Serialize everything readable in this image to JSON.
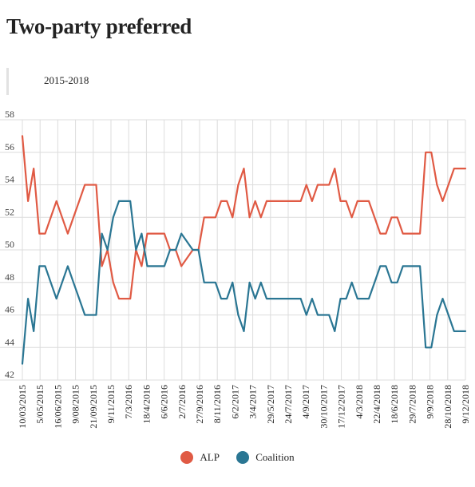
{
  "page": {
    "title": "Two-party preferred",
    "range_label": "2015-2018"
  },
  "colors": {
    "alp": "#e05a44",
    "coalition": "#2a7693",
    "grid": "#dcdcdc"
  },
  "chart_data": {
    "type": "line",
    "title": "Two-party preferred",
    "subtitle": "2015-2018",
    "xlabel": "",
    "ylabel": "",
    "ylim": [
      42,
      58
    ],
    "yticks": [
      42,
      44,
      46,
      48,
      50,
      52,
      54,
      56,
      58
    ],
    "grid": true,
    "legend_position": "bottom",
    "x_tick_labels": [
      "10/03/2015",
      "5/05/2015",
      "16/06/2015",
      "9/08/2015",
      "21/09/2015",
      "9/11/2015",
      "7/3/2016",
      "18/4/2016",
      "6/6/2016",
      "2/7/2016",
      "27/9/2016",
      "8/11/2016",
      "6/2/2017",
      "3/4/2017",
      "29/5/2017",
      "24/7/2017",
      "4/9/2017",
      "30/10/2017",
      "17/12/2017",
      "4/3/2018",
      "22/4/2018",
      "18/6/2018",
      "29/7/2018",
      "9/9/2018",
      "28/10/2018",
      "9/12/2018"
    ],
    "series": [
      {
        "name": "ALP",
        "color": "#e05a44",
        "values": [
          57,
          53,
          55,
          51,
          51,
          52,
          53,
          52,
          51,
          52,
          53,
          54,
          54,
          54,
          49,
          50,
          48,
          47,
          47,
          47,
          50,
          49,
          51,
          51,
          51,
          51,
          50,
          50,
          49,
          49.5,
          50,
          50,
          52,
          52,
          52,
          53,
          53,
          52,
          54,
          55,
          52,
          53,
          52,
          53,
          53,
          53,
          53,
          53,
          53,
          53,
          54,
          53,
          54,
          54,
          54,
          55,
          53,
          53,
          52,
          53,
          53,
          53,
          52,
          51,
          51,
          52,
          52,
          51,
          51,
          51,
          51,
          56,
          56,
          54,
          53,
          54,
          55,
          55,
          55
        ]
      },
      {
        "name": "Coalition",
        "color": "#2a7693",
        "values": [
          43,
          47,
          45,
          49,
          49,
          48,
          47,
          48,
          49,
          48,
          47,
          46,
          46,
          46,
          51,
          50,
          52,
          53,
          53,
          53,
          50,
          51,
          49,
          49,
          49,
          49,
          50,
          50,
          51,
          50.5,
          50,
          50,
          48,
          48,
          48,
          47,
          47,
          48,
          46,
          45,
          48,
          47,
          48,
          47,
          47,
          47,
          47,
          47,
          47,
          47,
          46,
          47,
          46,
          46,
          46,
          45,
          47,
          47,
          48,
          47,
          47,
          47,
          48,
          49,
          49,
          48,
          48,
          49,
          49,
          49,
          49,
          44,
          44,
          46,
          47,
          46,
          45,
          45,
          45
        ]
      }
    ]
  },
  "legend": {
    "items": [
      {
        "label": "ALP",
        "color": "#e05a44"
      },
      {
        "label": "Coalition",
        "color": "#2a7693"
      }
    ]
  }
}
